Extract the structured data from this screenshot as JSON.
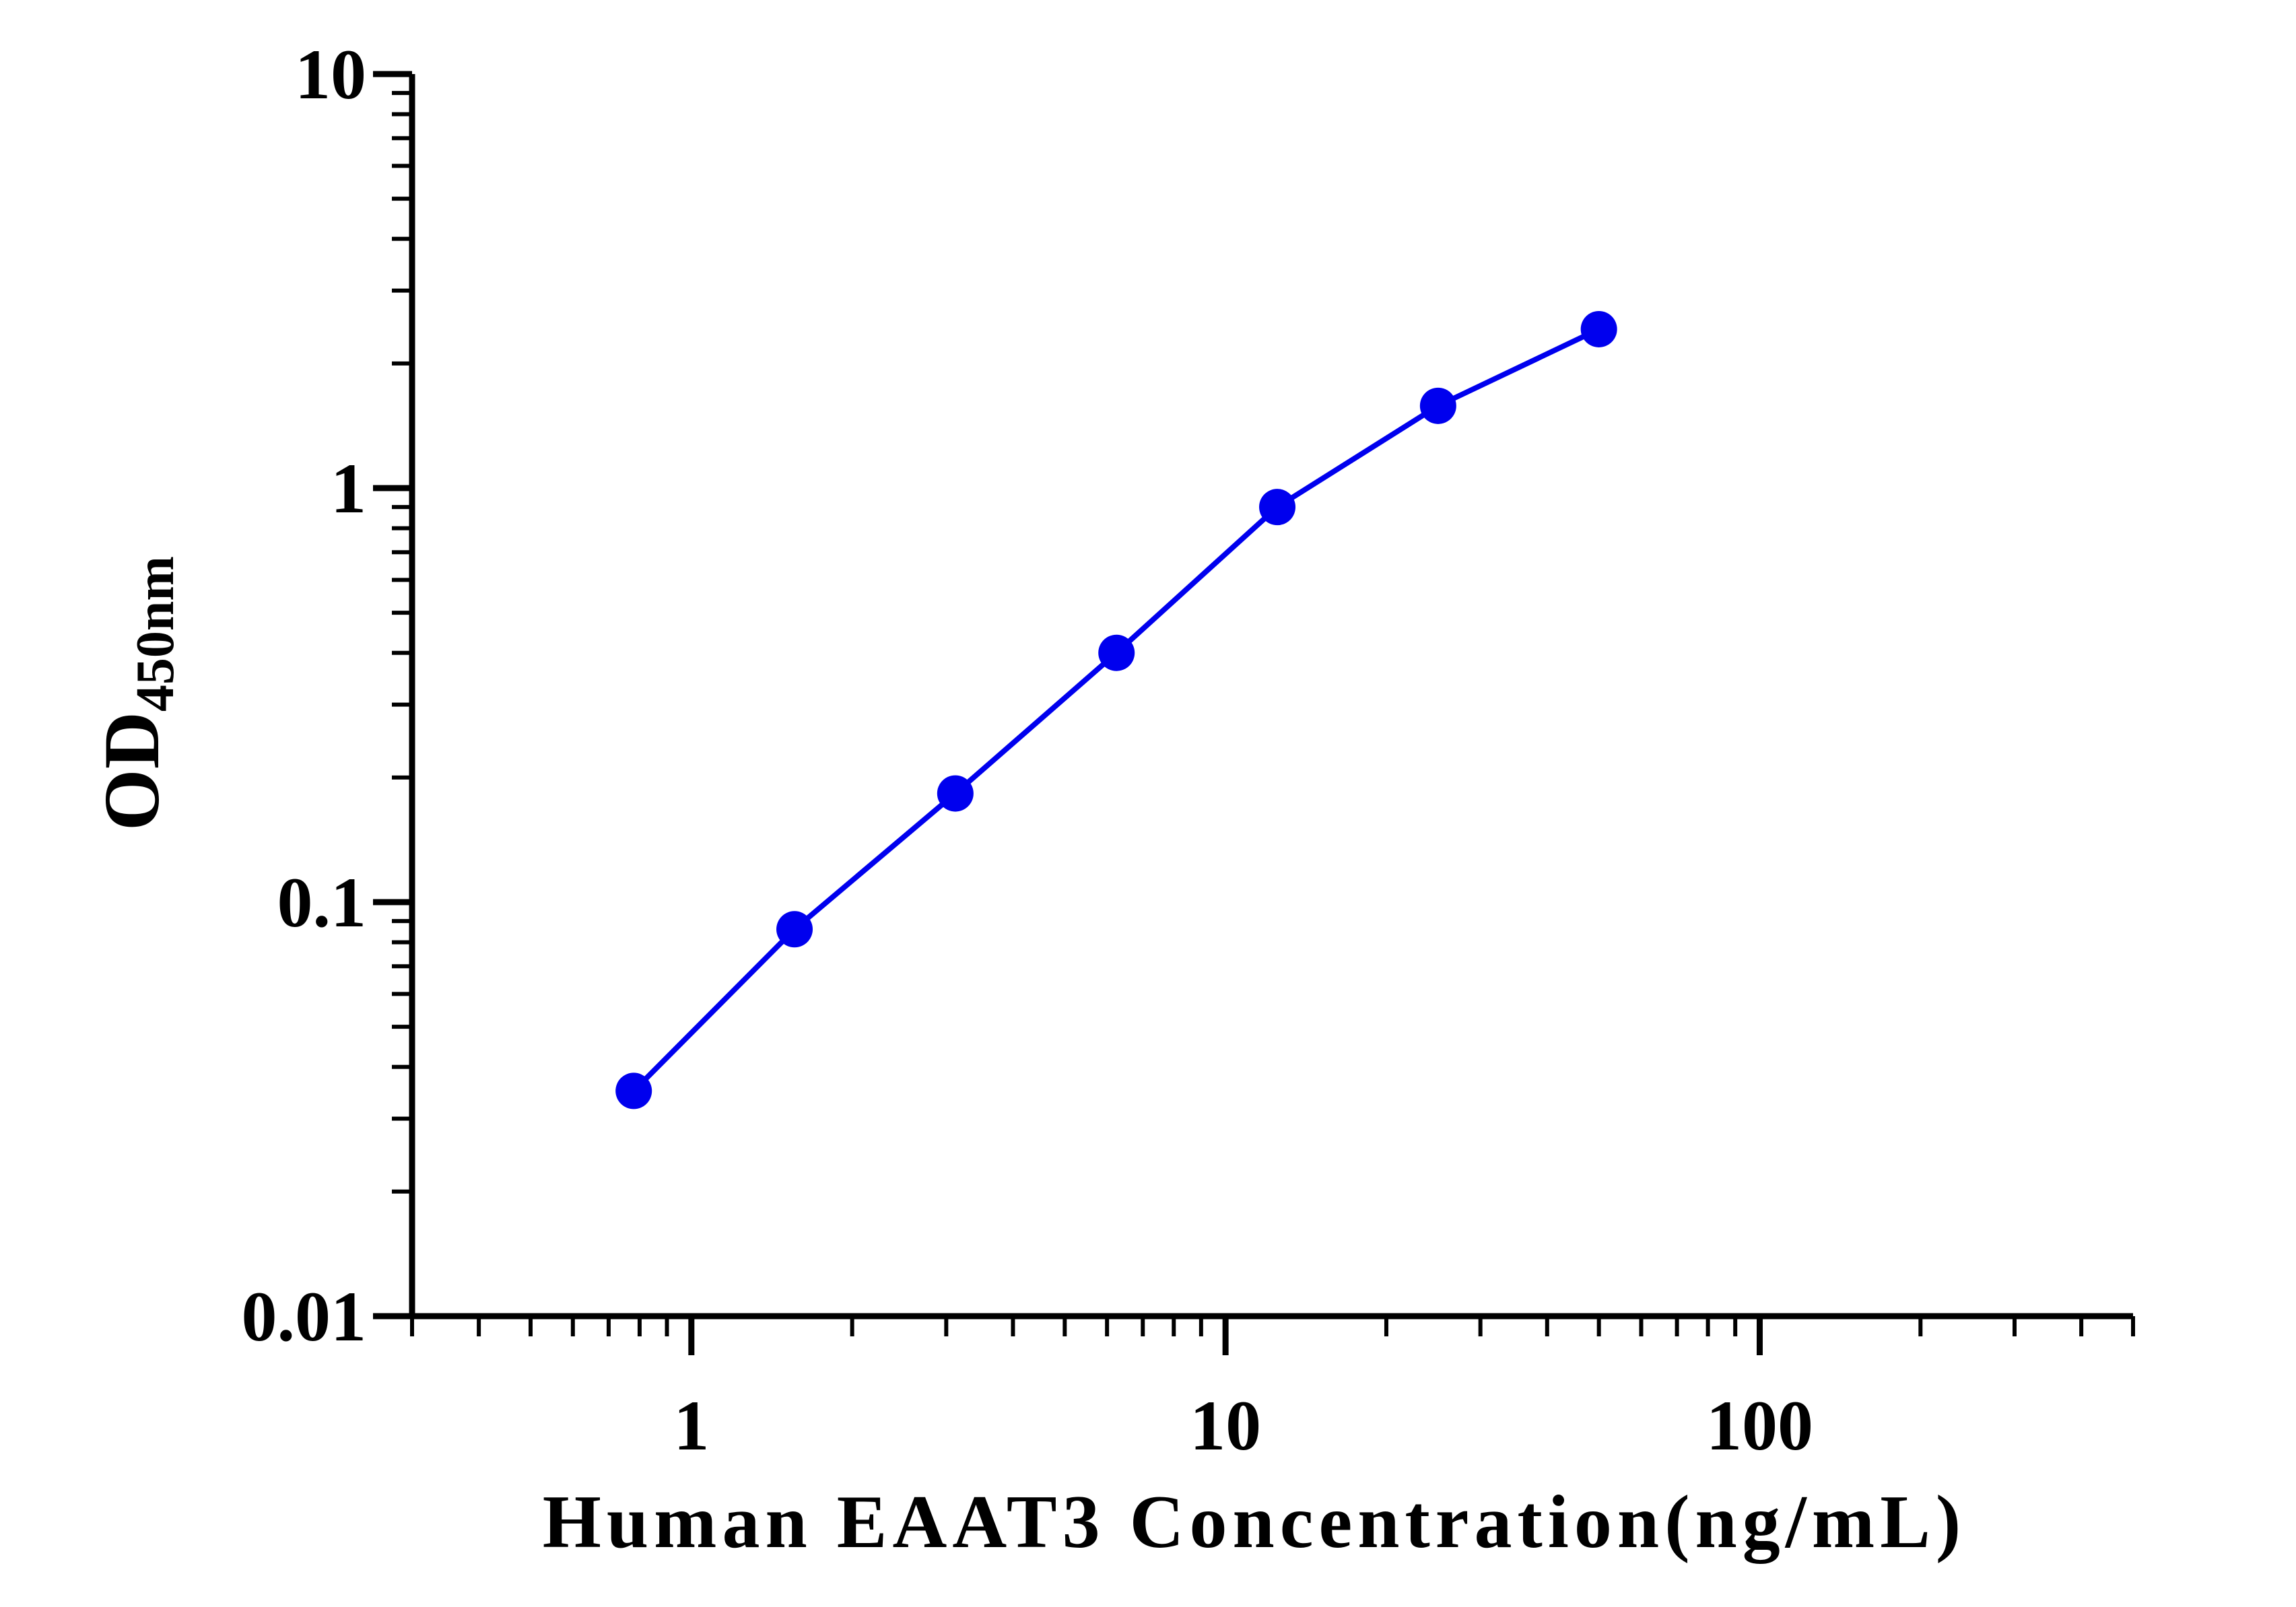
{
  "chart_data": {
    "type": "line",
    "title": "",
    "xlabel": "Human EAAT3 Concentration(ng/mL)",
    "ylabel_main": "OD",
    "ylabel_sub": "450nm",
    "x_scale": "log",
    "y_scale": "log",
    "xlim": [
      0.3,
      500
    ],
    "ylim": [
      0.01,
      10
    ],
    "x_tick_labels": [
      {
        "value": 1,
        "label": "1"
      },
      {
        "value": 10,
        "label": "10"
      },
      {
        "value": 100,
        "label": "100"
      }
    ],
    "y_tick_labels": [
      {
        "value": 0.01,
        "label": "0.01"
      },
      {
        "value": 0.1,
        "label": "0.1"
      },
      {
        "value": 1,
        "label": "1"
      },
      {
        "value": 10,
        "label": "10"
      }
    ],
    "grid": false,
    "legend": "none",
    "series_color": "#0000EE",
    "series": [
      {
        "x": [
          0.78,
          1.56,
          3.12,
          6.25,
          12.5,
          25,
          50
        ],
        "y": [
          0.035,
          0.086,
          0.183,
          0.4,
          0.9,
          1.58,
          2.42
        ]
      }
    ]
  }
}
